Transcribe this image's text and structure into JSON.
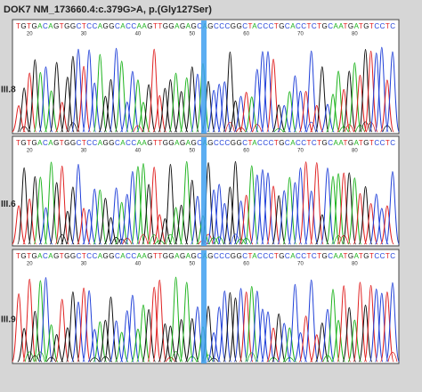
{
  "title": "DOK7 NM_173660.4:c.379G>A, p.(Gly127Ser)",
  "panels": [
    {
      "label": "III.8",
      "sequence": "TGTGACAGTGGCTCCAGGCACCAAGTTGGAGAGCAGCCCGGCTACCCTGCACCTCTGCAATGATGTCCTC",
      "positions": [
        "20",
        "30",
        "40",
        "50",
        "60",
        "70",
        "80"
      ]
    },
    {
      "label": "III.6",
      "sequence": "TGTGACAGTGGCTCCAGGCACCAAGTTGGAGAGCAGCCCGGCTACCCTGCACCTCTGCAATGATGTCCTC",
      "positions": [
        "20",
        "30",
        "40",
        "50",
        "60",
        "70",
        "80"
      ]
    },
    {
      "label": "III.9",
      "sequence": "TGTGACAGTGGCTCCAGGCACCAAGTTGGAGAGCAGCCCGGCTACCCTGCACCTCTGCAATGATGTCCTC",
      "positions": [
        "20",
        "30",
        "40",
        "50",
        "60",
        "70",
        "80"
      ]
    }
  ]
}
